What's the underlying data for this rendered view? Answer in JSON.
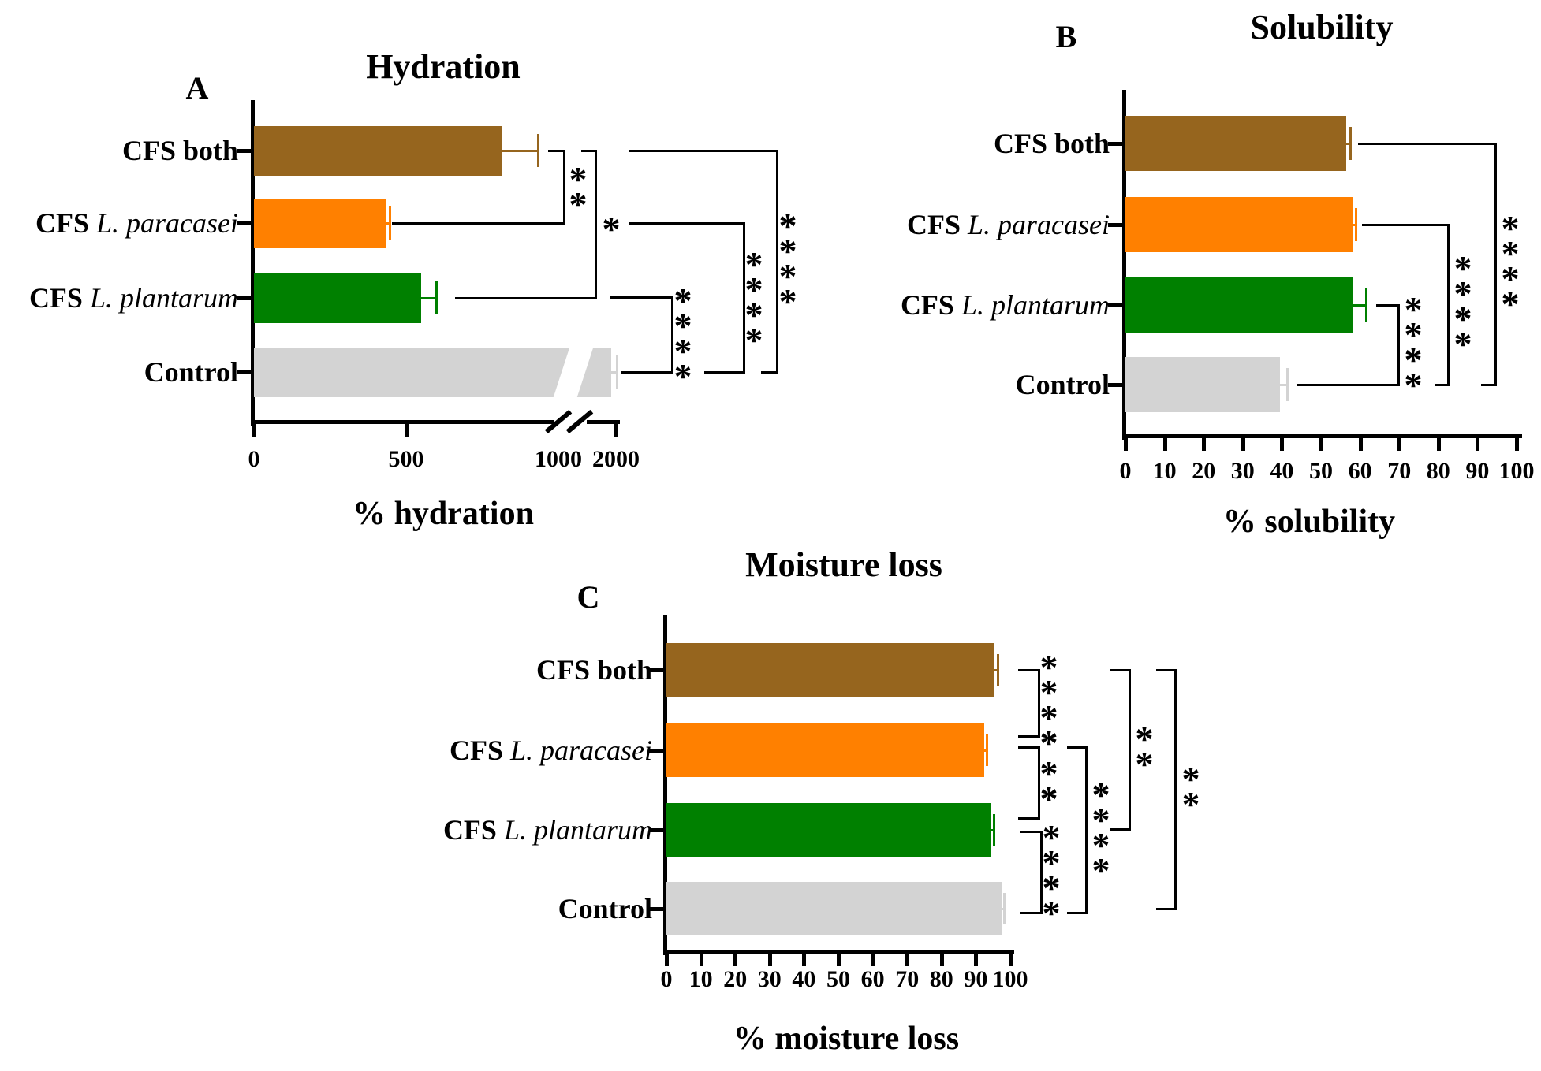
{
  "figure_colors": {
    "bar_brown": "#96651E",
    "bar_orange": "#FF8000",
    "bar_green": "#008000",
    "bar_gray": "#D3D3D3",
    "axis_black": "#000000"
  },
  "chart_data": [
    {
      "panel": "A",
      "type": "bar",
      "orientation": "horizontal",
      "title": "Hydration",
      "xlabel": "% hydration",
      "xlim": [
        0,
        2000
      ],
      "axis_break": {
        "between": [
          1000,
          2000
        ]
      },
      "xtick_labels": [
        "0",
        "500",
        "1000",
        "2000"
      ],
      "xtick_values": [
        0,
        500,
        1000,
        2000
      ],
      "categories": [
        {
          "name": "CFS both",
          "prefix": "CFS both",
          "italic": ""
        },
        {
          "name": "CFS L. paracasei",
          "prefix": "CFS ",
          "italic": "L. paracasei"
        },
        {
          "name": "CFS L. plantarum",
          "prefix": "CFS ",
          "italic": "L. plantarum"
        },
        {
          "name": "Control",
          "prefix": "Control",
          "italic": ""
        }
      ],
      "values": [
        815,
        435,
        550,
        1900
      ],
      "errors": [
        120,
        12,
        50,
        100
      ],
      "bar_colors": [
        "#96651E",
        "#FF8000",
        "#008000",
        "#D3D3D3"
      ],
      "significance": [
        {
          "between": [
            "CFS both",
            "CFS L. paracasei"
          ],
          "stars": "**"
        },
        {
          "between": [
            "CFS both",
            "CFS L. plantarum"
          ],
          "stars": "*"
        },
        {
          "between": [
            "CFS L. plantarum",
            "Control"
          ],
          "stars": "****"
        },
        {
          "between": [
            "CFS L. paracasei",
            "Control"
          ],
          "stars": "****"
        },
        {
          "between": [
            "CFS both",
            "Control"
          ],
          "stars": "****"
        }
      ]
    },
    {
      "panel": "B",
      "type": "bar",
      "orientation": "horizontal",
      "title": "Solubility",
      "xlabel": "% solubility",
      "xlim": [
        0,
        100
      ],
      "xtick_labels": [
        "0",
        "10",
        "20",
        "30",
        "40",
        "50",
        "60",
        "70",
        "80",
        "90",
        "100"
      ],
      "xtick_values": [
        0,
        10,
        20,
        30,
        40,
        50,
        60,
        70,
        80,
        90,
        100
      ],
      "categories": [
        {
          "name": "CFS both",
          "prefix": "CFS both",
          "italic": ""
        },
        {
          "name": "CFS L. paracasei",
          "prefix": "CFS ",
          "italic": "L. paracasei"
        },
        {
          "name": "CFS L. plantarum",
          "prefix": "CFS ",
          "italic": "L. plantarum"
        },
        {
          "name": "Control",
          "prefix": "Control",
          "italic": ""
        }
      ],
      "values": [
        56.5,
        58,
        58,
        39.5
      ],
      "errors": [
        1,
        1,
        3.5,
        2
      ],
      "bar_colors": [
        "#96651E",
        "#FF8000",
        "#008000",
        "#D3D3D3"
      ],
      "significance": [
        {
          "between": [
            "CFS L. plantarum",
            "Control"
          ],
          "stars": "****"
        },
        {
          "between": [
            "CFS L. paracasei",
            "Control"
          ],
          "stars": "****"
        },
        {
          "between": [
            "CFS both",
            "Control"
          ],
          "stars": "****"
        }
      ]
    },
    {
      "panel": "C",
      "type": "bar",
      "orientation": "horizontal",
      "title": "Moisture loss",
      "xlabel": "% moisture loss",
      "xlim": [
        0,
        100
      ],
      "xtick_labels": [
        "0",
        "10",
        "20",
        "30",
        "40",
        "50",
        "60",
        "70",
        "80",
        "90",
        "100"
      ],
      "xtick_values": [
        0,
        10,
        20,
        30,
        40,
        50,
        60,
        70,
        80,
        90,
        100
      ],
      "categories": [
        {
          "name": "CFS both",
          "prefix": "CFS both",
          "italic": ""
        },
        {
          "name": "CFS L. paracasei",
          "prefix": "CFS ",
          "italic": "L. paracasei"
        },
        {
          "name": "CFS L. plantarum",
          "prefix": "CFS ",
          "italic": "L. plantarum"
        },
        {
          "name": "Control",
          "prefix": "Control",
          "italic": ""
        }
      ],
      "values": [
        95.5,
        92.5,
        94.5,
        97.5
      ],
      "errors": [
        1,
        0.7,
        0.7,
        0.7
      ],
      "bar_colors": [
        "#96651E",
        "#FF8000",
        "#008000",
        "#D3D3D3"
      ],
      "significance": [
        {
          "between": [
            "CFS both",
            "CFS L. paracasei"
          ],
          "stars": "****"
        },
        {
          "between": [
            "CFS L. paracasei",
            "CFS L. plantarum"
          ],
          "stars": "**"
        },
        {
          "between": [
            "CFS L. plantarum",
            "Control"
          ],
          "stars": "****"
        },
        {
          "between": [
            "CFS L. paracasei",
            "Control"
          ],
          "stars": "****"
        },
        {
          "between": [
            "CFS both",
            "CFS L. plantarum"
          ],
          "stars": "**"
        },
        {
          "between": [
            "CFS both",
            "Control"
          ],
          "stars": "**"
        }
      ]
    }
  ]
}
